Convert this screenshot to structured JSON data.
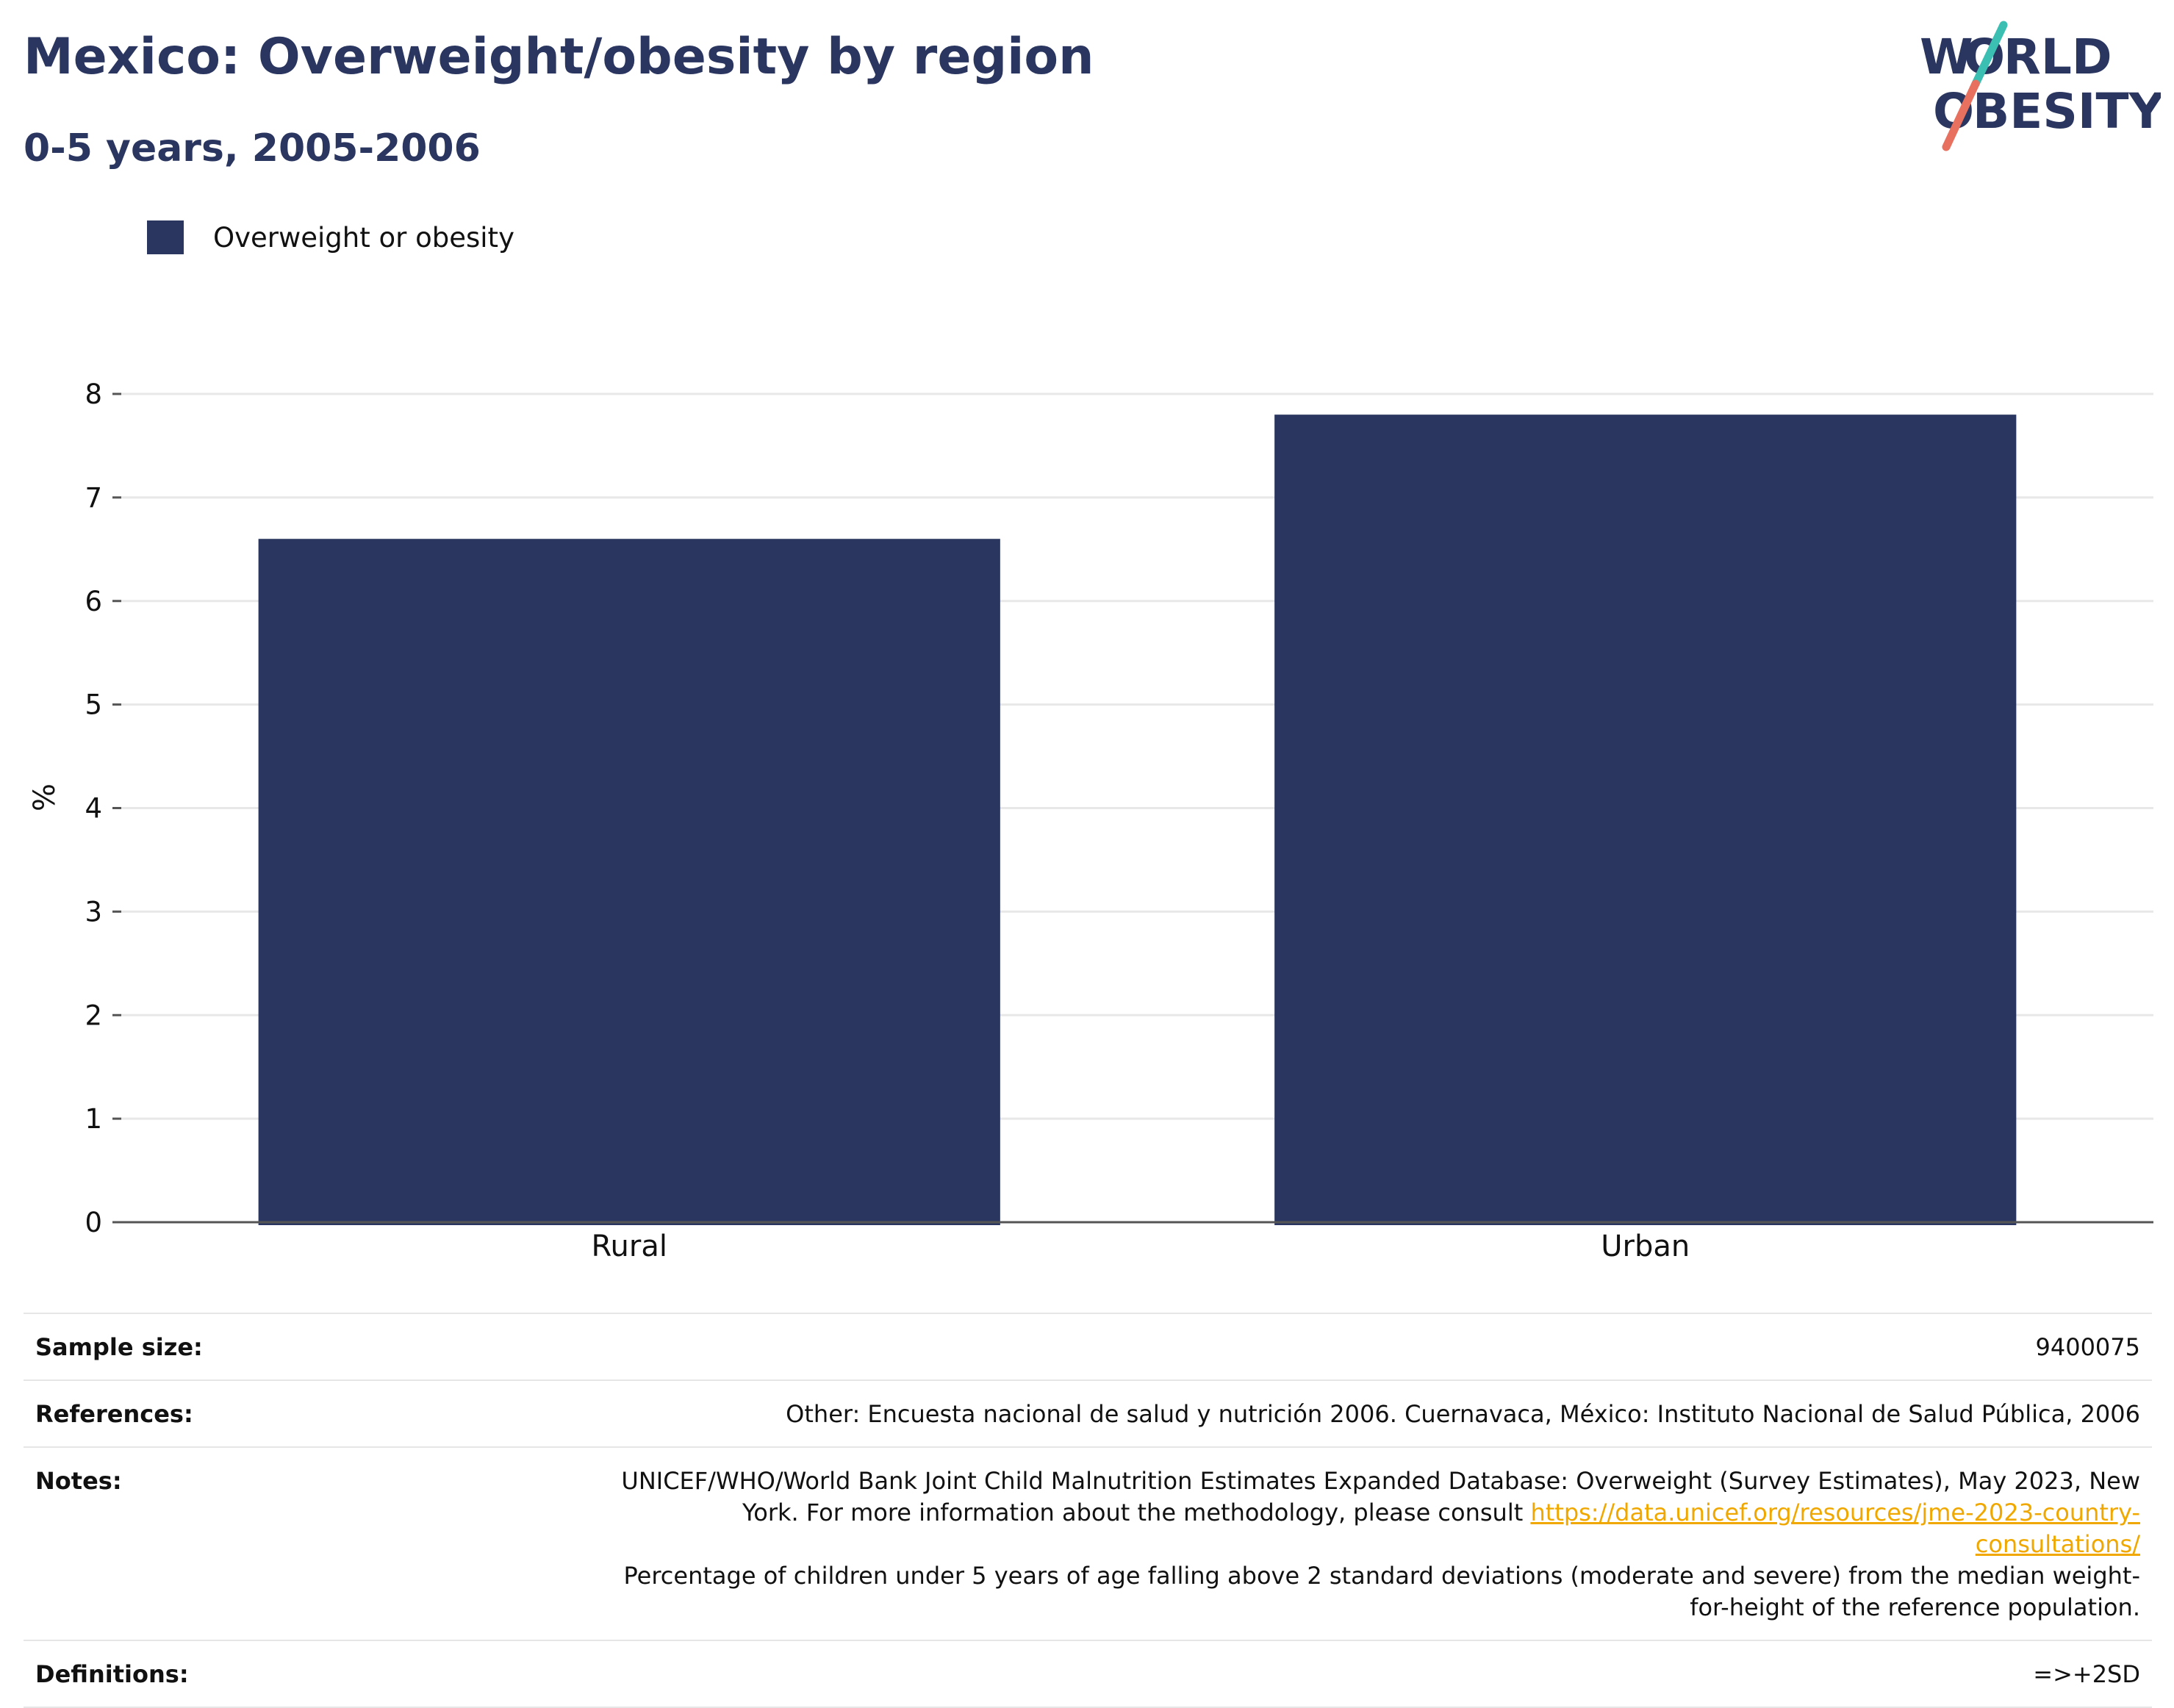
{
  "header": {
    "title": "Mexico: Overweight/obesity by region",
    "subtitle": "0-5 years, 2005-2006"
  },
  "logo": {
    "line1": "W",
    "line1b": "RLD",
    "line2b": "BESITY",
    "colors": {
      "navy": "#2a365f",
      "teal": "#3bbfb2",
      "coral": "#e8705f"
    }
  },
  "legend": {
    "label": "Overweight or obesity",
    "color": "#2a365f"
  },
  "chart_data": {
    "type": "bar",
    "title": "Mexico: Overweight/obesity by region",
    "subtitle": "0-5 years, 2005-2006",
    "xlabel": "",
    "ylabel": "%",
    "categories": [
      "Rural",
      "Urban"
    ],
    "series": [
      {
        "name": "Overweight or obesity",
        "values": [
          6.6,
          7.8
        ],
        "color": "#2a365f"
      }
    ],
    "ylim": [
      0,
      8
    ],
    "yticks": [
      "0",
      "1",
      "2",
      "3",
      "4",
      "5",
      "6",
      "7",
      "8"
    ],
    "grid": true,
    "legend_position": "top-left"
  },
  "info": {
    "sample_size_label": "Sample size:",
    "sample_size_value": "9400075",
    "references_label": "References:",
    "references_value": "Other: Encuesta nacional de salud y nutrición 2006. Cuernavaca, México: Instituto Nacional de Salud Pública, 2006",
    "notes_label": "Notes:",
    "notes_text_1": "UNICEF/WHO/World Bank Joint Child Malnutrition Estimates Expanded Database: Overweight (Survey Estimates), May 2023, New York. For more information about the methodology, please consult ",
    "notes_link": "https://data.unicef.org/resources/jme-2023-country-consultations/",
    "notes_text_2": "Percentage of children under 5 years of age falling above 2 standard deviations (moderate and severe) from the median weight-for-height of the reference population.",
    "definitions_label": "Definitions:",
    "definitions_value": "=>+2SD"
  }
}
